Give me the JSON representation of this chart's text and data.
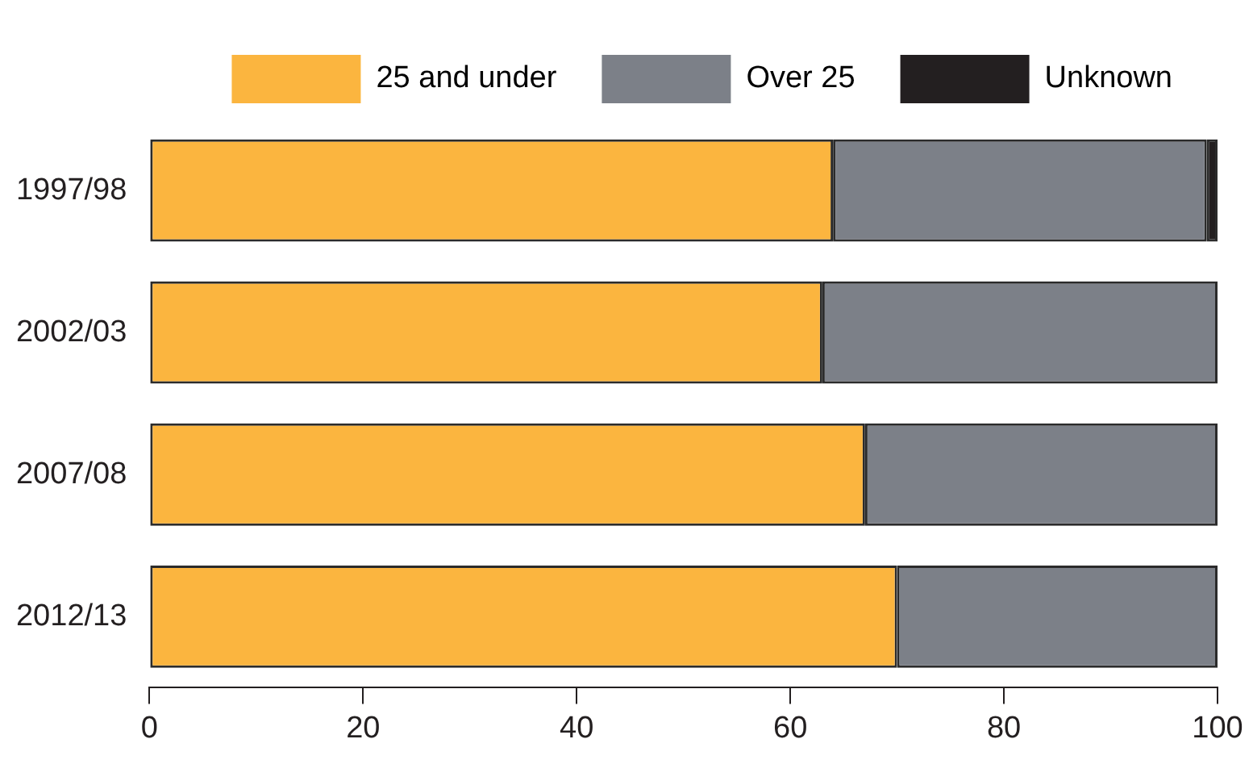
{
  "chart_data": {
    "type": "bar",
    "orientation": "horizontal",
    "stacked": true,
    "categories": [
      "1997/98",
      "2002/03",
      "2007/08",
      "2012/13"
    ],
    "series": [
      {
        "name": "25 and under",
        "color": "#fbb53f",
        "values": [
          64,
          63,
          67,
          70
        ]
      },
      {
        "name": "Over 25",
        "color": "#7c8088",
        "values": [
          35,
          37,
          33,
          30
        ]
      },
      {
        "name": "Unknown",
        "color": "#231f20",
        "values": [
          1,
          0,
          0,
          0
        ]
      }
    ],
    "xlim": [
      0,
      100
    ],
    "xticks": [
      0,
      20,
      40,
      60,
      80,
      100
    ],
    "grid": false,
    "legend": "top right"
  }
}
